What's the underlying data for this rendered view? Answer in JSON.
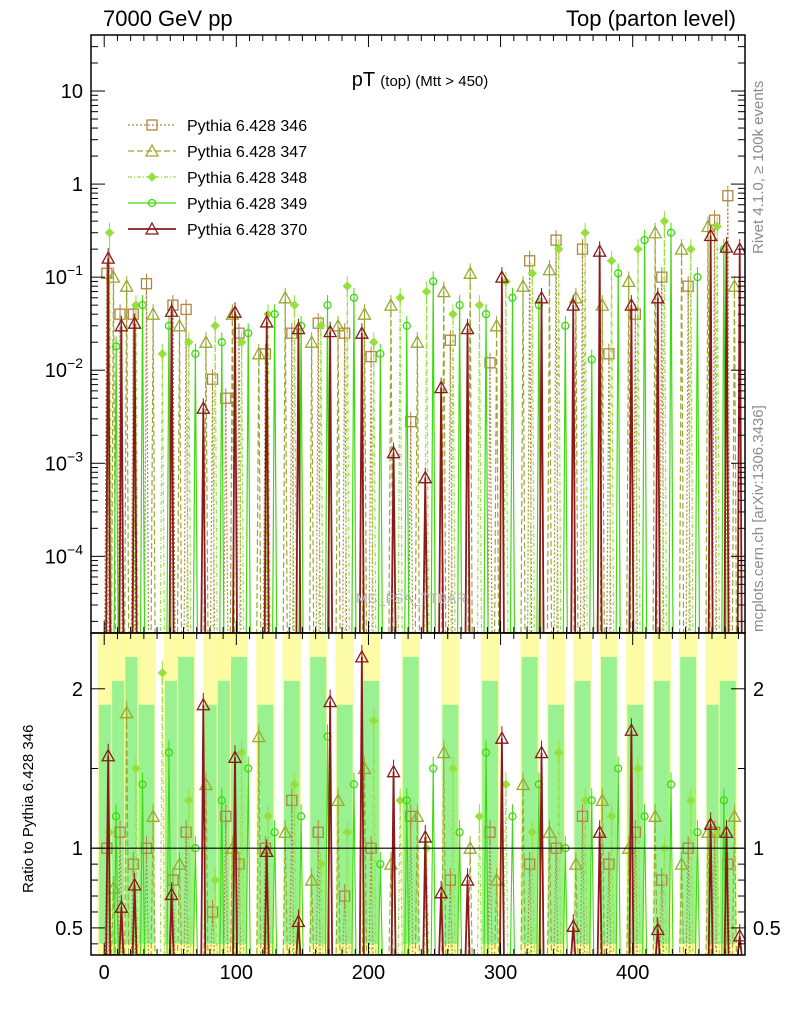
{
  "header": {
    "left": "7000 GeV pp",
    "right": "Top (parton level)"
  },
  "side_labels": {
    "rivet": "Rivet 4.1.0, ≥ 100k events",
    "mcplots": "mcplots.cern.ch [arXiv:1306.3436]"
  },
  "watermark": "MC_FSA_TTBAR",
  "chart_data": {
    "type": "line",
    "title": "pT (top) (Mtt > 450)",
    "title_main": "pT",
    "title_sub": "(top) (Mtt > 450)",
    "xlabel": "",
    "ylabel": "",
    "xlim": [
      -10,
      485
    ],
    "ylim_log": [
      1.5e-05,
      40
    ],
    "main_ytick_values": [
      0.0001,
      0.001,
      0.01,
      0.1,
      1,
      10
    ],
    "main_ytick_labels": [
      {
        "base": "10",
        "exp": "−4"
      },
      {
        "base": "10",
        "exp": "−3"
      },
      {
        "base": "10",
        "exp": "−2"
      },
      {
        "base": "10",
        "exp": "−1"
      },
      {
        "base": "1",
        "exp": ""
      },
      {
        "base": "10",
        "exp": ""
      }
    ],
    "xtick_values": [
      0,
      100,
      200,
      300,
      400
    ],
    "xtick_labels": [
      "0",
      "100",
      "200",
      "300",
      "400"
    ],
    "ratio": {
      "ylabel": "Ratio to Pythia 6.428 346",
      "ylim": [
        0.33,
        2.35
      ],
      "ytick_values": [
        0.5,
        1,
        2
      ],
      "ytick_labels": [
        "0.5",
        "1",
        "2"
      ]
    },
    "colors": {
      "band_green": "#94f08f",
      "band_yellow": "#fdfc9c"
    },
    "series": [
      {
        "name": "Pythia 6.428 346",
        "color": "#b08443",
        "marker": "square",
        "dash": "2,2",
        "x": [
          2,
          12,
          22,
          32,
          52,
          62,
          82,
          92,
          102,
          122,
          142,
          162,
          182,
          202,
          232,
          262,
          292,
          322,
          342,
          362,
          382,
          402,
          422,
          442,
          462,
          472
        ],
        "y": [
          0.11,
          0.04,
          0.04,
          0.085,
          0.05,
          0.045,
          0.008,
          0.005,
          0.025,
          0.015,
          0.025,
          0.032,
          0.025,
          0.014,
          0.0028,
          0.021,
          0.012,
          0.15,
          0.25,
          0.2,
          0.015,
          0.04,
          0.1,
          0.08,
          0.41,
          0.75
        ],
        "ratio": [
          1,
          1.1,
          0.9,
          1,
          0.8,
          1.1,
          0.6,
          1.2,
          0.9,
          1,
          1.3,
          1.1,
          0.7,
          1.0,
          1.2,
          0.8,
          1.1,
          0.9,
          1.0,
          1.2,
          0.9,
          1.1,
          0.8,
          1.0,
          1.1,
          0.9
        ]
      },
      {
        "name": "Pythia 6.428 347",
        "color": "#9aa832",
        "marker": "triangle",
        "dash": "6,3",
        "x": [
          7,
          17,
          37,
          57,
          77,
          97,
          117,
          137,
          157,
          177,
          197,
          217,
          237,
          257,
          277,
          297,
          317,
          337,
          357,
          377,
          397,
          417,
          437,
          457,
          477
        ],
        "y": [
          0.1,
          0.08,
          0.04,
          0.03,
          0.02,
          0.04,
          0.015,
          0.06,
          0.02,
          0.03,
          0.04,
          0.05,
          0.02,
          0.07,
          0.11,
          0.03,
          0.08,
          0.12,
          0.06,
          0.05,
          0.09,
          0.3,
          0.2,
          0.35,
          0.08
        ],
        "ratio": [
          0.75,
          1.85,
          1.2,
          0.9,
          1.4,
          1.0,
          1.7,
          1.1,
          0.8,
          1.3,
          1.5,
          0.9,
          1.2,
          1.6,
          1.0,
          0.8,
          1.4,
          1.1,
          0.9,
          1.3,
          1.0,
          1.2,
          0.9,
          1.1,
          1.2
        ]
      },
      {
        "name": "Pythia 6.428 348",
        "color": "#96e03c",
        "marker": "diamond",
        "dash": "4,2,1,2",
        "x": [
          4,
          24,
          44,
          64,
          84,
          104,
          124,
          144,
          164,
          184,
          204,
          224,
          244,
          264,
          284,
          304,
          324,
          344,
          364,
          384,
          404,
          424,
          444,
          464
        ],
        "y": [
          0.3,
          0.05,
          0.015,
          0.02,
          0.03,
          0.02,
          0.04,
          0.05,
          0.03,
          0.08,
          0.02,
          0.06,
          0.07,
          0.04,
          0.05,
          0.09,
          0.11,
          0.2,
          0.3,
          0.15,
          0.2,
          0.4,
          0.2,
          0.35
        ],
        "ratio": [
          1.1,
          1.5,
          2.1,
          1.3,
          0.8,
          1.6,
          1.2,
          1.4,
          0.9,
          1.1,
          1.8,
          1.3,
          1.0,
          1.5,
          1.2,
          1.4,
          1.1,
          1.6,
          1.3,
          1.2,
          1.5,
          1.0,
          1.3,
          1.1
        ]
      },
      {
        "name": "Pythia 6.428 349",
        "color": "#3fd90f",
        "marker": "circle",
        "dash": "",
        "x": [
          9,
          29,
          49,
          69,
          89,
          109,
          129,
          149,
          169,
          189,
          209,
          229,
          249,
          269,
          289,
          309,
          329,
          349,
          369,
          389,
          409,
          429,
          449,
          469
        ],
        "y": [
          0.018,
          0.05,
          0.03,
          0.015,
          0.02,
          0.025,
          0.04,
          0.03,
          0.05,
          0.06,
          0.015,
          0.03,
          0.09,
          0.05,
          0.04,
          0.06,
          0.05,
          0.03,
          0.013,
          0.11,
          0.25,
          0.3,
          0.1,
          0.2
        ],
        "ratio": [
          1.2,
          1.4,
          1.6,
          1.0,
          1.3,
          1.5,
          1.1,
          1.2,
          1.7,
          1.4,
          0.9,
          1.3,
          1.5,
          1.1,
          1.6,
          1.2,
          1.4,
          1.0,
          1.3,
          1.5,
          1.2,
          1.4,
          1.1,
          1.3
        ]
      },
      {
        "name": "Pythia 6.428 370",
        "color": "#8b1a1a",
        "marker": "triangle",
        "dash": "",
        "x": [
          3,
          13,
          23,
          51,
          75,
          99,
          123,
          147,
          171,
          195,
          219,
          243,
          255,
          275,
          301,
          331,
          355,
          375,
          399,
          419,
          459,
          471,
          481
        ],
        "y": [
          0.16,
          0.03,
          0.032,
          0.043,
          0.0039,
          0.042,
          0.033,
          0.028,
          0.026,
          0.025,
          0.0013,
          0.0007,
          0.0065,
          0.028,
          0.1,
          0.06,
          0.05,
          0.19,
          0.05,
          0.06,
          0.28,
          0.21,
          0.2
        ],
        "ratio": [
          1.58,
          0.63,
          0.77,
          0.71,
          1.9,
          1.57,
          0.98,
          0.54,
          1.92,
          2.2,
          1.48,
          1.07,
          0.72,
          0.8,
          1.69,
          1.6,
          0.51,
          1.1,
          1.74,
          0.49,
          1.15,
          1.1,
          0.45
        ]
      }
    ]
  }
}
